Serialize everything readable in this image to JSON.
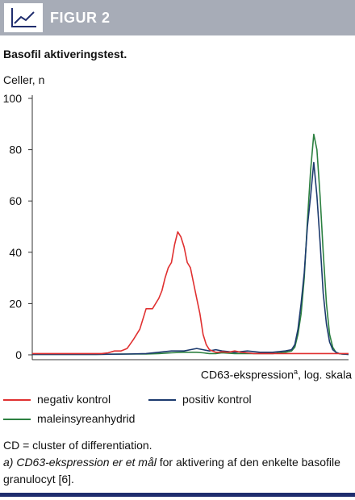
{
  "header": {
    "figure_label": "FIGUR 2",
    "icon": "line-chart-icon"
  },
  "chart_data": {
    "type": "line",
    "title": "Basofil aktiveringstest.",
    "ylabel": "Celler, n",
    "xlabel": "CD63-ekspression",
    "xlabel_sup": "a",
    "xlabel_suffix": ", log. skala",
    "ylim": [
      0,
      100
    ],
    "yticks": [
      "0",
      "20",
      "40",
      "60",
      "80",
      "100"
    ],
    "x_scale": "log",
    "grid": false,
    "legend_position": "bottom",
    "series": [
      {
        "name": "negativ kontrol",
        "color": "#e03030",
        "x": [
          0,
          4,
          8,
          12,
          16,
          20,
          22,
          24,
          26,
          28,
          30,
          32,
          34,
          36,
          38,
          40,
          41,
          42,
          43,
          44,
          45,
          46,
          47,
          48,
          49,
          50,
          51,
          52,
          53,
          54,
          55,
          56,
          57,
          58,
          59,
          60,
          62,
          64,
          66,
          68,
          70,
          72,
          76,
          80,
          84,
          88,
          92,
          96,
          100
        ],
        "y": [
          0.5,
          0.5,
          0.5,
          0.5,
          0.5,
          0.5,
          0.5,
          0.8,
          1.5,
          1.5,
          2.5,
          6,
          10,
          18,
          18,
          22,
          25,
          30,
          34,
          36,
          43,
          48,
          46,
          42,
          36,
          34,
          28,
          22,
          16,
          8,
          4,
          2,
          1.5,
          1,
          1,
          1.2,
          1,
          1.5,
          1,
          0.8,
          0.5,
          0.5,
          0.5,
          0.5,
          0.5,
          0.5,
          0.5,
          0.5,
          0.5
        ]
      },
      {
        "name": "positiv kontrol",
        "color": "#1c3a6e",
        "x": [
          0,
          20,
          30,
          36,
          40,
          44,
          48,
          50,
          52,
          54,
          56,
          58,
          60,
          64,
          68,
          72,
          76,
          80,
          82,
          83,
          84,
          85,
          86,
          87,
          88,
          89,
          90,
          91,
          92,
          93,
          94,
          95,
          96,
          97,
          98,
          100
        ],
        "y": [
          0.2,
          0.2,
          0.3,
          0.5,
          1,
          1.5,
          1.5,
          2,
          2.5,
          2,
          1.5,
          2,
          1.5,
          1,
          1.5,
          1,
          1,
          1.5,
          2,
          4,
          10,
          20,
          32,
          50,
          62,
          75,
          62,
          44,
          24,
          12,
          5,
          2,
          1,
          0.5,
          0.3,
          0.2
        ]
      },
      {
        "name": "maleinsyreanhydrid",
        "color": "#2c8040",
        "x": [
          0,
          20,
          30,
          36,
          40,
          44,
          48,
          50,
          52,
          54,
          56,
          58,
          60,
          64,
          68,
          72,
          76,
          80,
          82,
          83,
          84,
          85,
          86,
          87,
          88,
          89,
          90,
          91,
          92,
          93,
          94,
          95,
          96,
          97,
          98,
          100
        ],
        "y": [
          0.2,
          0.2,
          0.3,
          0.3,
          0.5,
          0.8,
          1,
          1,
          1,
          0.8,
          0.5,
          0.5,
          0.8,
          0.5,
          0.5,
          0.5,
          0.5,
          1,
          1.5,
          3,
          8,
          16,
          30,
          52,
          72,
          86,
          80,
          62,
          40,
          20,
          8,
          3,
          1,
          0.5,
          0.3,
          0.2
        ]
      }
    ]
  },
  "footnotes": {
    "line1": "CD = cluster of differentiation.",
    "line2_italic": "a) CD63-ekspression er et mål",
    "line2_rest": " for aktivering af den enkelte basofile",
    "line3": "granulocyt [6]."
  }
}
